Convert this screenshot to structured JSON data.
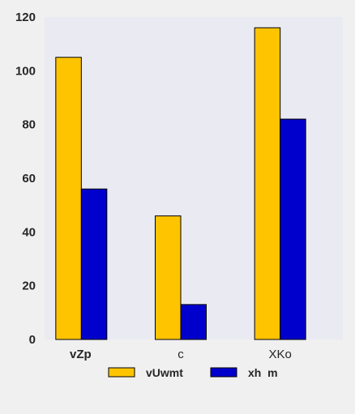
{
  "chart_data": {
    "type": "bar",
    "categories": [
      "vZp",
      "c",
      "XKo"
    ],
    "series": [
      {
        "name": "vUwmt",
        "values": [
          105,
          46,
          116
        ],
        "color": "#ffc400"
      },
      {
        "name": "xh  m",
        "values": [
          56,
          13,
          82
        ],
        "color": "#0000cc"
      }
    ],
    "ylim": [
      0,
      120
    ],
    "yticks": [
      0,
      20,
      40,
      60,
      80,
      100,
      120
    ],
    "grid": false,
    "plot_background": "#eaeaf2",
    "legend_position": "bottom"
  }
}
